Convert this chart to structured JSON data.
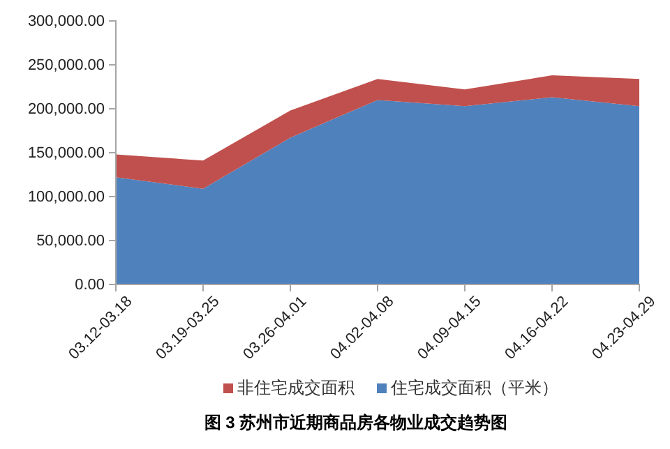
{
  "chart_data": {
    "type": "area",
    "title": "图 3 苏州市近期商品房各物业成交趋势图",
    "stacked": true,
    "categories": [
      "03.12-03.18",
      "03.19-03.25",
      "03.26-04.01",
      "04.02-04.08",
      "04.09-04.15",
      "04.16-04.22",
      "04.23-04.29"
    ],
    "series": [
      {
        "name": "住宅成交面积（平米）",
        "color": "#4f81bd",
        "values": [
          122000,
          109000,
          167000,
          210000,
          203000,
          213000,
          203000
        ]
      },
      {
        "name": "非住宅成交面积",
        "color": "#c0504d",
        "values": [
          26000,
          32000,
          31000,
          24000,
          19000,
          25000,
          31000
        ]
      }
    ],
    "ylim": [
      0,
      300000
    ],
    "yticks": [
      {
        "value": 0,
        "label": "0.00"
      },
      {
        "value": 50000,
        "label": "50,000.00"
      },
      {
        "value": 100000,
        "label": "100,000.00"
      },
      {
        "value": 150000,
        "label": "150,000.00"
      },
      {
        "value": 200000,
        "label": "200,000.00"
      },
      {
        "value": 250000,
        "label": "250,000.00"
      },
      {
        "value": 300000,
        "label": "300,000.00"
      }
    ],
    "grid": false,
    "legend": "bottom"
  }
}
